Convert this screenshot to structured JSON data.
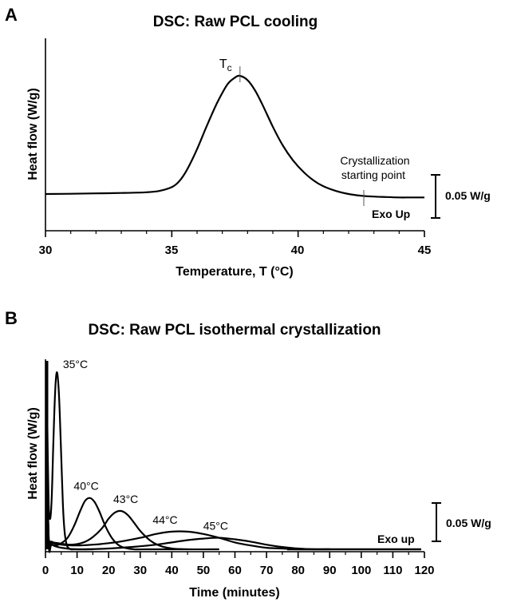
{
  "chart_data": [
    {
      "panel": "A",
      "type": "line",
      "title": "DSC: Raw PCL cooling",
      "xlabel": "Temperature, T (°C)",
      "ylabel": "Heat flow (W/g)",
      "xlim": [
        30,
        45
      ],
      "xticks": [
        "30",
        "35",
        "40",
        "45"
      ],
      "annotations": {
        "peak_label_main": "T",
        "peak_label_sub": "c",
        "start_label_line1": "Crystallization",
        "start_label_line2": "starting point",
        "scale_label": "0.05 W/g",
        "exo_label": "Exo Up"
      },
      "peak_x": 37.7,
      "start_x": 42.6,
      "scale_bar_value": 0.05,
      "series": [
        {
          "x": [
            30,
            31,
            32,
            33,
            34,
            34.5,
            35,
            35.3,
            35.6,
            36,
            36.4,
            36.8,
            37.2,
            37.5,
            37.7,
            38,
            38.3,
            38.6,
            39,
            39.4,
            39.8,
            40.2,
            40.6,
            41,
            41.5,
            42,
            42.5,
            43,
            43.5,
            44,
            44.5,
            45
          ],
          "y": [
            0.0,
            0.0003,
            0.0007,
            0.0012,
            0.002,
            0.0035,
            0.008,
            0.015,
            0.028,
            0.052,
            0.08,
            0.106,
            0.127,
            0.135,
            0.137,
            0.132,
            0.12,
            0.103,
            0.078,
            0.056,
            0.039,
            0.026,
            0.016,
            0.009,
            0.0035,
            0.0,
            -0.002,
            -0.003,
            -0.0035,
            -0.004,
            -0.004,
            -0.004
          ]
        }
      ]
    },
    {
      "panel": "B",
      "type": "line",
      "title": "DSC: Raw PCL isothermal crystallization",
      "xlabel": "Time (minutes)",
      "ylabel": "Heat flow (W/g)",
      "xlim": [
        0,
        120
      ],
      "xticks": [
        "0",
        "10",
        "20",
        "30",
        "40",
        "50",
        "60",
        "70",
        "80",
        "90",
        "100",
        "110",
        "120"
      ],
      "annotations": {
        "scale_label": "0.05 W/g",
        "exo_label": "Exo up"
      },
      "scale_bar_value": 0.05,
      "series": [
        {
          "name": "35°C",
          "x": [
            0.3,
            0.6,
            1,
            1.5,
            2,
            2.5,
            3,
            3.5,
            4,
            4.5,
            5,
            5.5,
            6,
            6.5,
            7,
            8,
            9,
            10,
            12,
            15
          ],
          "y": [
            0.35,
            0.16,
            0.06,
            0.04,
            0.07,
            0.14,
            0.2,
            0.23,
            0.22,
            0.18,
            0.12,
            0.06,
            0.025,
            0.01,
            0.003,
            0.0,
            0.0,
            0.0,
            0.0,
            0.0
          ]
        },
        {
          "name": "40°C",
          "x": [
            0.3,
            0.8,
            1.5,
            3,
            5,
            7,
            9,
            11,
            12.5,
            14,
            15.5,
            17,
            19,
            21,
            23,
            25,
            28,
            32,
            36,
            45
          ],
          "y": [
            0.25,
            0.03,
            0.01,
            0.005,
            0.008,
            0.015,
            0.03,
            0.05,
            0.063,
            0.067,
            0.062,
            0.05,
            0.03,
            0.015,
            0.006,
            0.002,
            0.0,
            0.0,
            0.0,
            0.0
          ]
        },
        {
          "name": "43°C",
          "x": [
            0.3,
            1,
            2,
            4,
            8,
            12,
            15,
            18,
            20,
            22,
            24,
            26,
            28,
            30,
            33,
            36,
            40,
            45,
            55
          ],
          "y": [
            0.2,
            0.018,
            0.01,
            0.008,
            0.006,
            0.009,
            0.016,
            0.028,
            0.04,
            0.048,
            0.05,
            0.045,
            0.035,
            0.024,
            0.012,
            0.005,
            0.001,
            0.0,
            0.0
          ]
        },
        {
          "name": "44°C",
          "x": [
            0.3,
            1,
            2,
            5,
            10,
            15,
            20,
            25,
            30,
            35,
            40,
            45,
            50,
            55,
            60,
            65,
            70,
            75,
            80,
            90
          ],
          "y": [
            0.2,
            0.015,
            0.009,
            0.006,
            0.005,
            0.006,
            0.008,
            0.011,
            0.015,
            0.02,
            0.023,
            0.023,
            0.02,
            0.015,
            0.009,
            0.005,
            0.002,
            0.001,
            0.0,
            0.0
          ]
        },
        {
          "name": "45°C",
          "x": [
            0.3,
            1,
            2,
            5,
            10,
            20,
            30,
            35,
            40,
            45,
            50,
            55,
            60,
            65,
            70,
            75,
            80,
            85,
            90
          ],
          "y": [
            0.2,
            0.012,
            0.006,
            0.002,
            0.0,
            0.001,
            0.004,
            0.006,
            0.009,
            0.012,
            0.014,
            0.015,
            0.013,
            0.01,
            0.006,
            0.003,
            0.001,
            0.0,
            0.0
          ]
        }
      ]
    }
  ]
}
